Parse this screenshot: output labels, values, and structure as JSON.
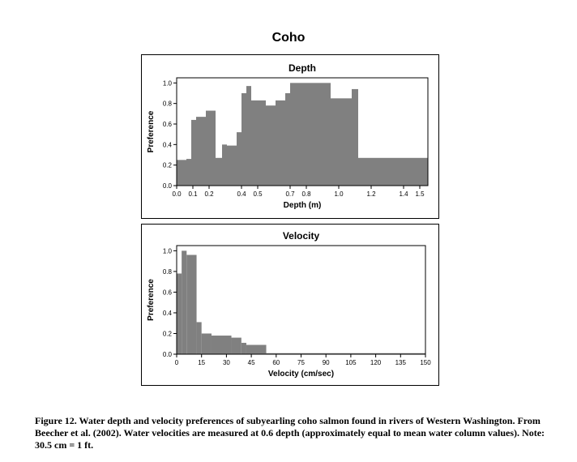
{
  "figure_title": "Coho",
  "caption": "Figure 12. Water depth and velocity preferences of subyearling coho salmon found in rivers of Western Washington. From Beecher et al. (2002). Water velocities are measured at 0.6 depth (approximately equal to mean water column values). Note: 30.5 cm = 1 ft.",
  "colors": {
    "bar": "#808080",
    "axis": "#000000"
  },
  "chart_data": [
    {
      "type": "area",
      "title": "Depth",
      "xlabel": "Depth (m)",
      "ylabel": "Preference",
      "xlim": [
        0,
        1.55
      ],
      "ylim": [
        0,
        1.05
      ],
      "x_ticks": [
        "0.0",
        "0.1",
        "0.2",
        "0.4",
        "0.5",
        "0.7",
        "0.8",
        "1.0",
        "1.2",
        "1.4",
        "1.5"
      ],
      "x_tick_values": [
        0,
        0.1,
        0.2,
        0.4,
        0.5,
        0.7,
        0.8,
        1.0,
        1.2,
        1.4,
        1.5
      ],
      "y_ticks": [
        "0.0",
        "0.2",
        "0.4",
        "0.6",
        "0.8",
        "1.0"
      ],
      "y_tick_values": [
        0,
        0.2,
        0.4,
        0.6,
        0.8,
        1.0
      ],
      "grid": false,
      "steps": [
        {
          "x0": 0.0,
          "x1": 0.06,
          "y": 0.25
        },
        {
          "x0": 0.06,
          "x1": 0.09,
          "y": 0.26
        },
        {
          "x0": 0.09,
          "x1": 0.12,
          "y": 0.64
        },
        {
          "x0": 0.12,
          "x1": 0.18,
          "y": 0.67
        },
        {
          "x0": 0.18,
          "x1": 0.24,
          "y": 0.73
        },
        {
          "x0": 0.24,
          "x1": 0.28,
          "y": 0.27
        },
        {
          "x0": 0.28,
          "x1": 0.31,
          "y": 0.4
        },
        {
          "x0": 0.31,
          "x1": 0.37,
          "y": 0.39
        },
        {
          "x0": 0.37,
          "x1": 0.4,
          "y": 0.52
        },
        {
          "x0": 0.4,
          "x1": 0.43,
          "y": 0.9
        },
        {
          "x0": 0.43,
          "x1": 0.46,
          "y": 0.97
        },
        {
          "x0": 0.46,
          "x1": 0.55,
          "y": 0.83
        },
        {
          "x0": 0.55,
          "x1": 0.61,
          "y": 0.78
        },
        {
          "x0": 0.61,
          "x1": 0.67,
          "y": 0.83
        },
        {
          "x0": 0.67,
          "x1": 0.7,
          "y": 0.9
        },
        {
          "x0": 0.7,
          "x1": 0.95,
          "y": 1.0
        },
        {
          "x0": 0.95,
          "x1": 1.08,
          "y": 0.85
        },
        {
          "x0": 1.08,
          "x1": 1.12,
          "y": 0.94
        },
        {
          "x0": 1.12,
          "x1": 1.55,
          "y": 0.27
        }
      ]
    },
    {
      "type": "area",
      "title": "Velocity",
      "xlabel": "Velocity (cm/sec)",
      "ylabel": "Preference",
      "xlim": [
        0,
        150
      ],
      "ylim": [
        0,
        1.05
      ],
      "x_ticks": [
        "0",
        "15",
        "30",
        "45",
        "60",
        "75",
        "90",
        "105",
        "120",
        "135",
        "150"
      ],
      "x_tick_values": [
        0,
        15,
        30,
        45,
        60,
        75,
        90,
        105,
        120,
        135,
        150
      ],
      "y_ticks": [
        "0.0",
        "0.2",
        "0.4",
        "0.6",
        "0.8",
        "1.0"
      ],
      "y_tick_values": [
        0,
        0.2,
        0.4,
        0.6,
        0.8,
        1.0
      ],
      "grid": false,
      "steps": [
        {
          "x0": 0,
          "x1": 3,
          "y": 0.78
        },
        {
          "x0": 3,
          "x1": 6,
          "y": 1.0
        },
        {
          "x0": 6,
          "x1": 12,
          "y": 0.96
        },
        {
          "x0": 12,
          "x1": 15,
          "y": 0.31
        },
        {
          "x0": 15,
          "x1": 21,
          "y": 0.2
        },
        {
          "x0": 21,
          "x1": 33,
          "y": 0.18
        },
        {
          "x0": 33,
          "x1": 39,
          "y": 0.16
        },
        {
          "x0": 39,
          "x1": 42,
          "y": 0.11
        },
        {
          "x0": 42,
          "x1": 54,
          "y": 0.09
        },
        {
          "x0": 54,
          "x1": 150,
          "y": 0.01
        }
      ]
    }
  ]
}
